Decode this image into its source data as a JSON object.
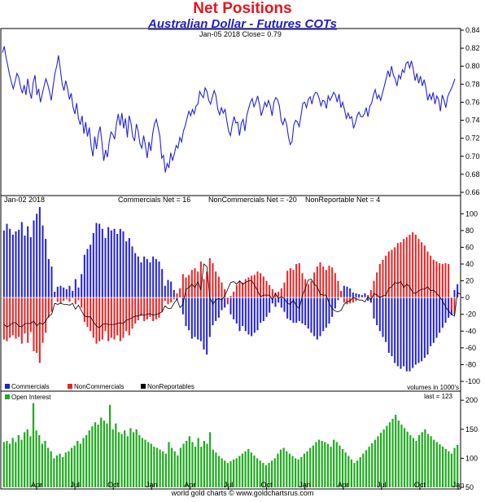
{
  "header": {
    "title": "Net Positions",
    "subtitle": "Australian Dollar - Futures COTs"
  },
  "footer": {
    "credit": "world gold charts © www.goldchartsrus.com"
  },
  "colors": {
    "price_line": "#2323e0",
    "commercials": "#2222dd",
    "noncommercials": "#ee2222",
    "nonreportables": "#000000",
    "open_interest": "#22aa22",
    "title": "#e8141c",
    "subtitle": "#2020d0"
  },
  "chart_data": [
    {
      "type": "line",
      "name": "price",
      "info_label": "Jan-05  2018   Close= 0.79",
      "ylim": [
        0.66,
        0.84
      ],
      "y_ticks": [
        "0.66",
        "0.68",
        "0.70",
        "0.72",
        "0.74",
        "0.76",
        "0.78",
        "0.80",
        "0.82",
        "0.84"
      ],
      "series": [
        {
          "values": [
            0.815,
            0.822,
            0.81,
            0.8,
            0.79,
            0.782,
            0.775,
            0.783,
            0.792,
            0.788,
            0.777,
            0.77,
            0.779,
            0.768,
            0.786,
            0.772,
            0.764,
            0.782,
            0.79,
            0.768,
            0.775,
            0.76,
            0.769,
            0.778,
            0.786,
            0.78,
            0.772,
            0.762,
            0.778,
            0.792,
            0.8,
            0.812,
            0.796,
            0.78,
            0.773,
            0.784,
            0.775,
            0.763,
            0.77,
            0.755,
            0.747,
            0.759,
            0.742,
            0.735,
            0.745,
            0.725,
            0.738,
            0.722,
            0.732,
            0.711,
            0.7,
            0.722,
            0.708,
            0.725,
            0.733,
            0.715,
            0.695,
            0.707,
            0.699,
            0.716,
            0.727,
            0.724,
            0.719,
            0.736,
            0.747,
            0.734,
            0.748,
            0.731,
            0.742,
            0.721,
            0.745,
            0.737,
            0.722,
            0.717,
            0.736,
            0.728,
            0.714,
            0.709,
            0.723,
            0.712,
            0.698,
            0.716,
            0.706,
            0.725,
            0.736,
            0.741,
            0.732,
            0.722,
            0.698,
            0.701,
            0.682,
            0.692,
            0.687,
            0.704,
            0.695,
            0.703,
            0.712,
            0.709,
            0.721,
            0.716,
            0.728,
            0.734,
            0.742,
            0.75,
            0.745,
            0.752,
            0.747,
            0.756,
            0.758,
            0.772,
            0.768,
            0.765,
            0.776,
            0.772,
            0.762,
            0.758,
            0.766,
            0.773,
            0.767,
            0.752,
            0.746,
            0.754,
            0.748,
            0.752,
            0.739,
            0.728,
            0.723,
            0.735,
            0.744,
            0.737,
            0.738,
            0.723,
            0.737,
            0.741,
            0.728,
            0.745,
            0.753,
            0.76,
            0.764,
            0.755,
            0.76,
            0.767,
            0.758,
            0.745,
            0.752,
            0.76,
            0.755,
            0.762,
            0.756,
            0.745,
            0.76,
            0.765,
            0.763,
            0.756,
            0.74,
            0.735,
            0.742,
            0.736,
            0.722,
            0.713,
            0.716,
            0.735,
            0.74,
            0.738,
            0.733,
            0.746,
            0.759,
            0.76,
            0.754,
            0.763,
            0.766,
            0.758,
            0.767,
            0.771,
            0.77,
            0.764,
            0.756,
            0.762,
            0.761,
            0.753,
            0.767,
            0.762,
            0.766,
            0.771,
            0.768,
            0.76,
            0.769,
            0.754,
            0.76,
            0.752,
            0.742,
            0.748,
            0.742,
            0.744,
            0.731,
            0.737,
            0.745,
            0.749,
            0.744,
            0.744,
            0.747,
            0.754,
            0.744,
            0.756,
            0.759,
            0.768,
            0.774,
            0.764,
            0.768,
            0.762,
            0.77,
            0.778,
            0.786,
            0.795,
            0.788,
            0.8,
            0.79,
            0.786,
            0.778,
            0.79,
            0.786,
            0.796,
            0.793,
            0.803,
            0.805,
            0.798,
            0.806,
            0.797,
            0.784,
            0.792,
            0.781,
            0.789,
            0.778,
            0.785,
            0.776,
            0.762,
            0.769,
            0.763,
            0.771,
            0.758,
            0.767,
            0.763,
            0.75,
            0.768,
            0.762,
            0.754,
            0.766,
            0.771,
            0.775,
            0.78,
            0.786
          ]
        }
      ]
    },
    {
      "type": "bar",
      "name": "net_positions",
      "info_label": "Jan-02  2018",
      "stats": [
        "Commercials Net = 16",
        "NonCommercials Net = -20",
        "NonReportable Net = 4"
      ],
      "ylim": [
        -100,
        110
      ],
      "y_ticks": [
        "-100",
        "-80",
        "-60",
        "-40",
        "-20",
        "0",
        "20",
        "40",
        "60",
        "80",
        "100"
      ],
      "units_label": "volumes in 1000's",
      "legend": [
        "Commercials",
        "NonCommercials",
        "NonReportables"
      ],
      "series": [
        {
          "name": "Commercials",
          "values": [
            80,
            88,
            82,
            75,
            79,
            81,
            90,
            74,
            85,
            72,
            92,
            100,
            108,
            86,
            70,
            46,
            37,
            7,
            13,
            14,
            12,
            10,
            14,
            8,
            22,
            12,
            28,
            51,
            58,
            63,
            77,
            89,
            88,
            82,
            71,
            84,
            80,
            82,
            76,
            82,
            79,
            67,
            71,
            61,
            53,
            49,
            42,
            49,
            46,
            42,
            49,
            46,
            43,
            34,
            14,
            21,
            19,
            9,
            -3,
            1,
            -20,
            -34,
            -39,
            -49,
            -47,
            -50,
            -52,
            -62,
            -68,
            -47,
            -33,
            -28,
            -24,
            -15,
            -12,
            -2,
            -20,
            -26,
            -31,
            -40,
            -34,
            -40,
            -44,
            -46,
            -42,
            -39,
            -30,
            -28,
            -23,
            -18,
            -7,
            -11,
            -6,
            -12,
            -17,
            -25,
            -27,
            -30,
            -30,
            -28,
            -31,
            -33,
            -37,
            -42,
            -46,
            -50,
            -46,
            -40,
            -36,
            -31,
            -23,
            -13,
            -3,
            7,
            14,
            13,
            11,
            6,
            5,
            4,
            3,
            5,
            -4,
            -6,
            -25,
            -33,
            -40,
            -47,
            -53,
            -66,
            -70,
            -78,
            -82,
            -85,
            -82,
            -88,
            -88,
            -84,
            -80,
            -78,
            -76,
            -72,
            -68,
            -58,
            -54,
            -48,
            -42,
            -36,
            -30,
            -24,
            -21,
            9,
            16
          ]
        },
        {
          "name": "NonCommercials",
          "values": [
            -50,
            -52,
            -48,
            -45,
            -49,
            -47,
            -55,
            -43,
            -54,
            -41,
            -64,
            -66,
            -78,
            -54,
            -42,
            -24,
            -17,
            0,
            -5,
            -7,
            -4,
            -2,
            -5,
            -1,
            -8,
            -3,
            -12,
            -29,
            -35,
            -40,
            -48,
            -55,
            -52,
            -50,
            -40,
            -52,
            -48,
            -50,
            -45,
            -52,
            -48,
            -40,
            -45,
            -37,
            -31,
            -27,
            -22,
            -28,
            -26,
            -23,
            -28,
            -26,
            -24,
            -17,
            -4,
            -8,
            -6,
            -2,
            5,
            11,
            28,
            24,
            27,
            33,
            35,
            31,
            43,
            22,
            31,
            47,
            41,
            31,
            25,
            18,
            10,
            -8,
            2,
            7,
            15,
            20,
            18,
            22,
            24,
            26,
            27,
            31,
            29,
            25,
            20,
            15,
            10,
            6,
            7,
            11,
            18,
            32,
            35,
            33,
            40,
            41,
            29,
            22,
            16,
            20,
            30,
            37,
            42,
            37,
            33,
            38,
            36,
            29,
            20,
            8,
            -6,
            -8,
            -7,
            -6,
            -4,
            -1,
            0,
            0,
            3,
            9,
            20,
            30,
            40,
            45,
            50,
            55,
            57,
            60,
            65,
            66,
            70,
            72,
            75,
            78,
            75,
            70,
            66,
            62,
            55,
            50,
            45,
            43,
            41,
            40,
            41,
            40,
            -15,
            -20
          ]
        },
        {
          "name": "NonReportables",
          "values": [
            -32,
            -35,
            -33,
            -30,
            -30,
            -34,
            -35,
            -31,
            -31,
            -31,
            -28,
            -34,
            -30,
            -32,
            -28,
            -22,
            -20,
            -7,
            -8,
            -7,
            -8,
            -8,
            -9,
            -7,
            -14,
            -9,
            -16,
            -22,
            -23,
            -23,
            -29,
            -34,
            -36,
            -32,
            -31,
            -32,
            -32,
            -32,
            -31,
            -30,
            -31,
            -27,
            -26,
            -24,
            -22,
            -22,
            -20,
            -21,
            -20,
            -19,
            -21,
            -20,
            -19,
            -17,
            -10,
            -13,
            -13,
            -7,
            -2,
            -12,
            -8,
            10,
            12,
            16,
            12,
            19,
            9,
            40,
            37,
            0,
            -8,
            -3,
            -1,
            -3,
            2,
            10,
            18,
            19,
            16,
            20,
            16,
            18,
            20,
            20,
            15,
            8,
            1,
            3,
            3,
            3,
            -3,
            5,
            -1,
            1,
            -1,
            -7,
            -8,
            -3,
            -10,
            -13,
            2,
            11,
            21,
            22,
            16,
            13,
            4,
            3,
            3,
            -7,
            -13,
            -16,
            -17,
            -15,
            -8,
            -5,
            -4,
            0,
            -1,
            -3,
            -3,
            -5,
            1,
            -3,
            5,
            3,
            0,
            2,
            3,
            11,
            13,
            18,
            17,
            19,
            12,
            16,
            13,
            6,
            5,
            8,
            10,
            10,
            13,
            8,
            9,
            5,
            1,
            -4,
            -11,
            -16,
            -20,
            -22,
            6,
            4
          ]
        }
      ]
    },
    {
      "type": "bar",
      "name": "open_interest",
      "legend": [
        "Open Interest"
      ],
      "last_label": "last = 123",
      "ylim": [
        50,
        210
      ],
      "y_ticks": [
        "50",
        "100",
        "150",
        "200"
      ],
      "x_ticks": [
        "Apr",
        "Jul",
        "Oct",
        "Jan",
        "Apr",
        "Jul",
        "Oct",
        "Jan",
        "Apr",
        "Jul",
        "Oct",
        "Jan"
      ],
      "series": [
        {
          "name": "Open Interest",
          "values": [
            128,
            130,
            125,
            135,
            128,
            140,
            132,
            145,
            150,
            138,
            195,
            148,
            140,
            125,
            130,
            118,
            112,
            100,
            105,
            108,
            102,
            110,
            112,
            118,
            122,
            130,
            125,
            135,
            140,
            148,
            155,
            162,
            158,
            170,
            165,
            160,
            192,
            150,
            160,
            145,
            142,
            148,
            138,
            152,
            145,
            150,
            140,
            135,
            132,
            128,
            125,
            120,
            118,
            115,
            112,
            108,
            128,
            118,
            112,
            105,
            118,
            125,
            130,
            138,
            128,
            120,
            135,
            120,
            130,
            125,
            145,
            115,
            110,
            104,
            100,
            96,
            92,
            95,
            98,
            100,
            104,
            108,
            112,
            116,
            110,
            105,
            100,
            96,
            92,
            88,
            92,
            96,
            100,
            108,
            115,
            118,
            112,
            108,
            104,
            100,
            98,
            102,
            108,
            112,
            118,
            122,
            128,
            132,
            130,
            128,
            125,
            120,
            132,
            128,
            122,
            116,
            110,
            104,
            98,
            92,
            96,
            102,
            108,
            114,
            120,
            126,
            132,
            138,
            144,
            150,
            156,
            162,
            168,
            175,
            165,
            158,
            152,
            146,
            140,
            135,
            130,
            140,
            145,
            150,
            142,
            138,
            132,
            128,
            124,
            120,
            116,
            112,
            108,
            118,
            123
          ]
        }
      ]
    }
  ]
}
